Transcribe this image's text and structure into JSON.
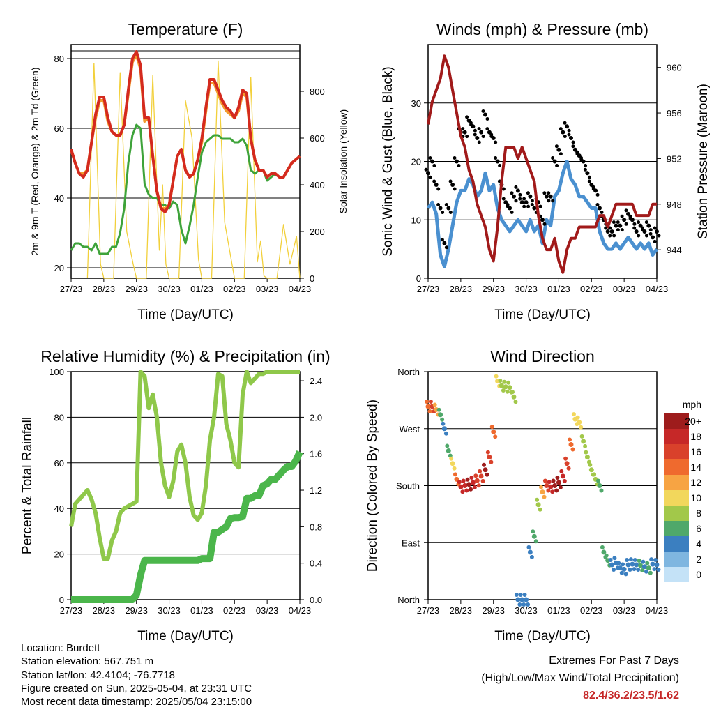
{
  "time_ticks": [
    "27/23",
    "28/23",
    "29/23",
    "30/23",
    "01/23",
    "02/23",
    "03/23",
    "04/23"
  ],
  "chart_data": [
    {
      "type": "line",
      "title": "Temperature (F)",
      "xlabel": "Time (Day/UTC)",
      "ylabel": "2m & 9m T (Red, Orange) & 2m Td (Green)",
      "ylabel_right": "Solar Insolation (Yellow)",
      "ylim": [
        17,
        84
      ],
      "yticks": [
        20,
        40,
        60,
        80
      ],
      "ylim_right": [
        0,
        1000
      ],
      "yticks_right": [
        0,
        200,
        400,
        600,
        800
      ],
      "x": [
        0,
        0.125,
        0.25,
        0.375,
        0.5,
        0.625,
        0.75,
        0.875,
        1,
        1.125,
        1.25,
        1.375,
        1.5,
        1.625,
        1.75,
        1.875,
        2,
        2.125,
        2.25,
        2.375,
        2.5,
        2.625,
        2.75,
        2.875,
        3,
        3.125,
        3.25,
        3.375,
        3.5,
        3.625,
        3.75,
        3.875,
        4,
        4.125,
        4.25,
        4.375,
        4.5,
        4.625,
        4.75,
        4.875,
        5,
        5.125,
        5.25,
        5.375,
        5.5,
        5.625,
        5.75,
        5.875,
        6,
        6.125,
        6.25,
        6.375,
        6.5,
        6.625,
        6.75,
        6.875,
        7
      ],
      "series": [
        {
          "name": "2m T",
          "color": "#d42a1e",
          "values": [
            54,
            50,
            47,
            46,
            48,
            56,
            64,
            69,
            69,
            63,
            59,
            58,
            58,
            61,
            71,
            80,
            82,
            78,
            63,
            63,
            52,
            42,
            37,
            36,
            38,
            45,
            52,
            54,
            48,
            46,
            47,
            51,
            57,
            66,
            74,
            74,
            71,
            68,
            66,
            65,
            63,
            66,
            71,
            70,
            57,
            51,
            48,
            48,
            46,
            47,
            47,
            46,
            46,
            48,
            50,
            51,
            52
          ]
        },
        {
          "name": "9m T",
          "color": "#f29a2e",
          "values": [
            54,
            50,
            47,
            47,
            48,
            56,
            63,
            68,
            68,
            62,
            59,
            58,
            58,
            61,
            70,
            79,
            81,
            77,
            62,
            63,
            52,
            42,
            37,
            37,
            38,
            45,
            52,
            54,
            48,
            46,
            47,
            51,
            56,
            65,
            73,
            73,
            70,
            67,
            65,
            64,
            63,
            65,
            70,
            69,
            57,
            51,
            48,
            48,
            46,
            47,
            47,
            46,
            46,
            48,
            50,
            51,
            52
          ]
        },
        {
          "name": "2m Td",
          "color": "#3ea33a",
          "values": [
            25,
            27,
            27,
            26,
            26,
            25,
            27,
            24,
            24,
            24,
            26,
            26,
            30,
            37,
            50,
            58,
            61,
            60,
            44,
            41,
            40,
            40,
            38,
            38,
            37,
            39,
            38,
            31,
            27,
            32,
            38,
            46,
            53,
            56,
            57,
            58,
            58,
            57,
            57,
            57,
            56,
            56,
            57,
            55,
            48,
            47,
            48,
            48,
            45,
            46,
            47,
            46,
            46,
            48,
            50,
            51,
            52
          ]
        }
      ],
      "solar": {
        "name": "Solar Insolation",
        "color": "#f2d03b",
        "x": [
          0.5,
          0.7,
          0.9,
          1.0,
          1.3,
          1.5,
          1.7,
          1.9,
          2.0,
          2.3,
          2.5,
          2.7,
          2.8,
          2.9,
          3.0,
          3.3,
          3.5,
          3.7,
          3.9,
          4.0,
          4.3,
          4.5,
          4.7,
          4.9,
          5.0,
          5.3,
          5.5,
          5.7,
          5.8,
          5.9,
          6.0,
          6.3,
          6.5,
          6.7,
          6.9,
          7.0
        ],
        "values": [
          0,
          920,
          60,
          0,
          0,
          880,
          200,
          60,
          0,
          0,
          870,
          120,
          400,
          60,
          0,
          0,
          760,
          600,
          80,
          0,
          0,
          930,
          240,
          80,
          0,
          0,
          860,
          70,
          160,
          10,
          0,
          0,
          230,
          60,
          180,
          0
        ]
      }
    },
    {
      "type": "scatter",
      "title": "Winds (mph) & Pressure (mb)",
      "xlabel": "Time (Day/UTC)",
      "ylabel": "Sonic Wind & Gust (Blue, Black)",
      "ylabel_right": "Station Pressure (Maroon)",
      "ylim": [
        0,
        40
      ],
      "yticks": [
        0,
        10,
        20,
        30
      ],
      "ylim_right": [
        941.5,
        962
      ],
      "yticks_right": [
        944,
        948,
        952,
        956,
        960
      ],
      "x": [
        0,
        0.125,
        0.25,
        0.375,
        0.5,
        0.625,
        0.75,
        0.875,
        1,
        1.125,
        1.25,
        1.375,
        1.5,
        1.625,
        1.75,
        1.875,
        2,
        2.125,
        2.25,
        2.375,
        2.5,
        2.625,
        2.75,
        2.875,
        3,
        3.125,
        3.25,
        3.375,
        3.5,
        3.625,
        3.75,
        3.875,
        4,
        4.125,
        4.25,
        4.375,
        4.5,
        4.625,
        4.75,
        4.875,
        5,
        5.125,
        5.25,
        5.375,
        5.5,
        5.625,
        5.75,
        5.875,
        6,
        6.125,
        6.25,
        6.375,
        6.5,
        6.625,
        6.75,
        6.875,
        7
      ],
      "series": [
        {
          "name": "Sonic Wind",
          "color": "#4a90d0",
          "values": [
            12,
            13,
            11,
            4,
            2,
            5,
            9,
            13,
            15,
            15,
            17,
            16,
            14,
            15,
            18,
            15,
            16,
            12,
            10,
            9,
            8,
            9,
            10,
            9,
            8,
            10,
            8,
            9,
            6,
            10,
            9,
            14,
            15,
            18,
            20,
            17,
            16,
            14,
            14,
            13,
            12,
            12,
            8,
            6,
            5,
            5,
            6,
            5,
            6,
            7,
            6,
            5,
            6,
            5,
            6,
            4,
            5
          ]
        },
        {
          "name": "Gust",
          "color": "#000000",
          "values": [
            18,
            20,
            16,
            12,
            6,
            12,
            16,
            20,
            25,
            25,
            27,
            26,
            24,
            25,
            28,
            25,
            24,
            20,
            16,
            13,
            12,
            14,
            15,
            13,
            13,
            14,
            12,
            13,
            10,
            14,
            14,
            20,
            22,
            25,
            26,
            24,
            22,
            21,
            20,
            18,
            16,
            15,
            12,
            10,
            8,
            8,
            9,
            9,
            10,
            11,
            10,
            8,
            9,
            8,
            9,
            7,
            8
          ]
        },
        {
          "name": "Station Pressure",
          "color": "#a11a1a",
          "values": [
            955,
            957,
            958,
            959,
            961,
            960,
            958,
            956,
            954,
            953,
            951,
            950,
            948,
            947,
            946,
            944,
            943,
            946,
            950,
            953,
            953,
            953,
            952,
            953,
            952,
            951,
            950,
            947,
            945,
            944,
            944,
            945,
            943,
            942,
            944,
            945,
            945,
            946,
            946,
            946,
            946,
            946,
            947,
            947,
            946,
            947,
            948,
            948,
            948,
            948,
            948,
            947,
            947,
            947,
            947,
            948,
            948
          ]
        }
      ]
    },
    {
      "type": "line",
      "title": "Relative Humidity (%) & Precipitation (in)",
      "xlabel": "Time (Day/UTC)",
      "ylabel": "Percent & Total Rainfall",
      "ylim": [
        0,
        100
      ],
      "yticks": [
        0,
        20,
        40,
        60,
        80,
        100
      ],
      "ylim_right": [
        0,
        2.5
      ],
      "yticks_right": [
        0.0,
        0.4,
        0.8,
        1.2,
        1.6,
        2.0,
        2.4
      ],
      "x": [
        0,
        0.125,
        0.25,
        0.375,
        0.5,
        0.625,
        0.75,
        0.875,
        1,
        1.125,
        1.25,
        1.375,
        1.5,
        1.625,
        1.75,
        1.875,
        2,
        2.125,
        2.25,
        2.375,
        2.5,
        2.625,
        2.75,
        2.875,
        3,
        3.125,
        3.25,
        3.375,
        3.5,
        3.625,
        3.75,
        3.875,
        4,
        4.125,
        4.25,
        4.375,
        4.5,
        4.625,
        4.75,
        4.875,
        5,
        5.125,
        5.25,
        5.375,
        5.5,
        5.625,
        5.75,
        5.875,
        6,
        6.125,
        6.25,
        6.375,
        6.5,
        6.625,
        6.75,
        6.875,
        7
      ],
      "series": [
        {
          "name": "Relative Humidity",
          "color": "#8fc84a",
          "values": [
            32,
            42,
            44,
            46,
            48,
            44,
            38,
            27,
            18,
            18,
            26,
            30,
            38,
            40,
            41,
            42,
            43,
            100,
            98,
            84,
            90,
            80,
            60,
            50,
            45,
            52,
            65,
            68,
            60,
            45,
            37,
            35,
            38,
            50,
            70,
            80,
            99,
            98,
            77,
            70,
            60,
            58,
            90,
            100,
            95,
            97,
            99,
            99,
            100,
            100,
            100,
            100,
            100,
            100,
            100,
            100,
            100
          ]
        },
        {
          "name": "Total Rainfall",
          "color": "#4bb64b",
          "values": [
            0,
            0,
            0,
            0,
            0,
            0,
            0,
            0,
            0,
            0,
            0,
            0,
            0,
            0,
            0,
            0,
            0.05,
            0.27,
            0.43,
            0.43,
            0.43,
            0.43,
            0.43,
            0.43,
            0.43,
            0.43,
            0.43,
            0.43,
            0.43,
            0.43,
            0.43,
            0.43,
            0.45,
            0.45,
            0.45,
            0.74,
            0.74,
            0.77,
            0.8,
            0.89,
            0.9,
            0.9,
            0.91,
            1.11,
            1.11,
            1.14,
            1.14,
            1.25,
            1.27,
            1.32,
            1.32,
            1.37,
            1.42,
            1.46,
            1.46,
            1.52,
            1.62
          ]
        }
      ]
    },
    {
      "type": "scatter",
      "title": "Wind Direction",
      "xlabel": "Time (Day/UTC)",
      "ylabel": "Direction (Colored By Speed)",
      "yticks_labels": [
        "North",
        "East",
        "South",
        "West",
        "North"
      ],
      "ylim": [
        0,
        360
      ],
      "x": [
        0,
        0.125,
        0.25,
        0.375,
        0.5,
        0.625,
        0.75,
        0.875,
        1,
        1.125,
        1.25,
        1.375,
        1.5,
        1.625,
        1.75,
        1.875,
        2,
        2.125,
        2.25,
        2.375,
        2.5,
        2.625,
        2.75,
        2.875,
        3,
        3.125,
        3.25,
        3.375,
        3.5,
        3.625,
        3.75,
        3.875,
        4,
        4.125,
        4.25,
        4.375,
        4.5,
        4.625,
        4.75,
        4.875,
        5,
        5.125,
        5.25,
        5.375,
        5.5,
        5.625,
        5.75,
        5.875,
        6,
        6.125,
        6.25,
        6.375,
        6.5,
        6.625,
        6.75,
        6.875,
        7
      ],
      "values": [
        305,
        305,
        300,
        292,
        270,
        235,
        215,
        190,
        178,
        180,
        182,
        185,
        188,
        195,
        205,
        225,
        265,
        345,
        338,
        336,
        335,
        320,
        0,
        0,
        0,
        75,
        100,
        150,
        170,
        180,
        178,
        180,
        185,
        195,
        215,
        245,
        285,
        280,
        250,
        225,
        205,
        190,
        180,
        75,
        62,
        55,
        58,
        50,
        48,
        55,
        56,
        55,
        54,
        52,
        50,
        56,
        55
      ],
      "speeds": [
        14,
        16,
        12,
        6,
        4,
        6,
        10,
        14,
        18,
        18,
        20,
        18,
        15,
        16,
        19,
        16,
        14,
        10,
        8,
        8,
        8,
        8,
        4,
        3,
        3,
        3,
        5,
        8,
        12,
        15,
        18,
        20,
        20,
        18,
        16,
        14,
        10,
        9,
        8,
        8,
        8,
        8,
        6,
        5,
        5,
        4,
        4,
        4,
        4,
        4,
        3,
        4,
        5,
        4,
        5,
        3,
        4
      ],
      "colorbar": {
        "title": "mph",
        "labels": [
          "20+",
          "18",
          "16",
          "14",
          "12",
          "10",
          "8",
          "6",
          "4",
          "2",
          "0"
        ],
        "colors": [
          "#9e1c1c",
          "#c62828",
          "#d9412b",
          "#ef6a2e",
          "#f7a443",
          "#f2d75c",
          "#a2c84a",
          "#4fa86a",
          "#3b7fc0",
          "#7fb6e0",
          "#c4e2f7"
        ]
      }
    }
  ],
  "footer": {
    "location": "Location: Burdett",
    "elevation": "Station elevation: 567.751 m",
    "latlon": "Station lat/lon: 42.4104; -76.7718",
    "created": "Figure created on Sun, 2025-05-04, at 23:31 UTC",
    "recent": "Most recent data timestamp: 2025/05/04 23:15:00",
    "extremes_title": "Extremes For Past 7 Days",
    "extremes_subtitle": "(High/Low/Max Wind/Total Precipitation)",
    "extremes_values": "82.4/36.2/23.5/1.62"
  }
}
